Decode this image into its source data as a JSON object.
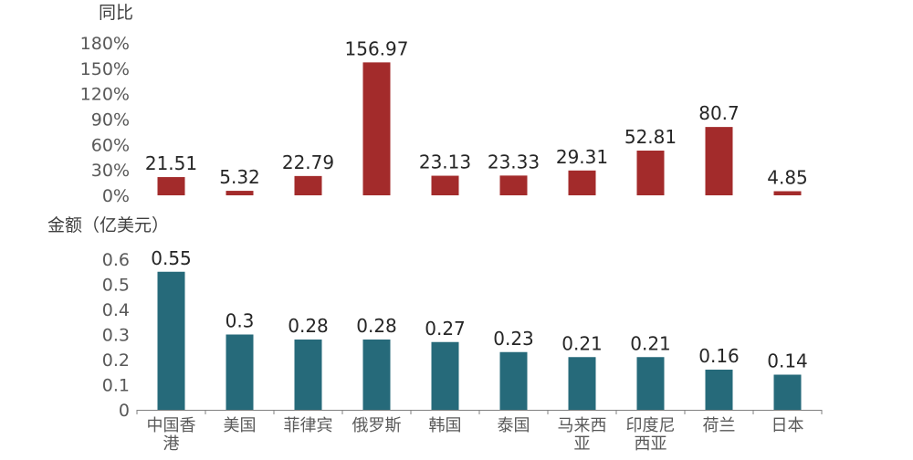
{
  "chart_data": [
    {
      "type": "bar",
      "ylabel": "同比",
      "ylim": [
        0,
        180
      ],
      "y_ticks": [
        "0%",
        "30%",
        "60%",
        "90%",
        "120%",
        "150%",
        "180%"
      ],
      "y_tick_values": [
        0,
        30,
        60,
        90,
        120,
        150,
        180
      ],
      "categories": [
        "中国香港",
        "美国",
        "菲律宾",
        "俄罗斯",
        "韩国",
        "泰国",
        "马来西亚",
        "印度尼西亚",
        "荷兰",
        "日本"
      ],
      "values": [
        21.51,
        5.32,
        22.79,
        156.97,
        23.13,
        23.33,
        29.31,
        52.81,
        80.7,
        4.85
      ],
      "labels": [
        "21.51",
        "5.32",
        "22.79",
        "156.97",
        "23.13",
        "23.33",
        "29.31",
        "52.81",
        "80.7",
        "4.85"
      ],
      "color": "#A32B2B",
      "grid": false
    },
    {
      "type": "bar",
      "ylabel": "金额（亿美元）",
      "ylim": [
        0,
        0.6
      ],
      "y_ticks": [
        "0",
        "0.1",
        "0.2",
        "0.3",
        "0.4",
        "0.5",
        "0.6"
      ],
      "y_tick_values": [
        0,
        0.1,
        0.2,
        0.3,
        0.4,
        0.5,
        0.6
      ],
      "categories": [
        "中国香港",
        "美国",
        "菲律宾",
        "俄罗斯",
        "韩国",
        "泰国",
        "马来西亚",
        "印度尼西亚",
        "荷兰",
        "日本"
      ],
      "category_lines": [
        [
          "中国香",
          "港"
        ],
        [
          "美国"
        ],
        [
          "菲律宾"
        ],
        [
          "俄罗斯"
        ],
        [
          "韩国"
        ],
        [
          "泰国"
        ],
        [
          "马来西",
          "亚"
        ],
        [
          "印度尼",
          "西亚"
        ],
        [
          "荷兰"
        ],
        [
          "日本"
        ]
      ],
      "values": [
        0.55,
        0.3,
        0.28,
        0.28,
        0.27,
        0.23,
        0.21,
        0.21,
        0.16,
        0.14
      ],
      "labels": [
        "0.55",
        "0.3",
        "0.28",
        "0.28",
        "0.27",
        "0.23",
        "0.21",
        "0.21",
        "0.16",
        "0.14"
      ],
      "color": "#266A7A",
      "grid": false
    }
  ]
}
